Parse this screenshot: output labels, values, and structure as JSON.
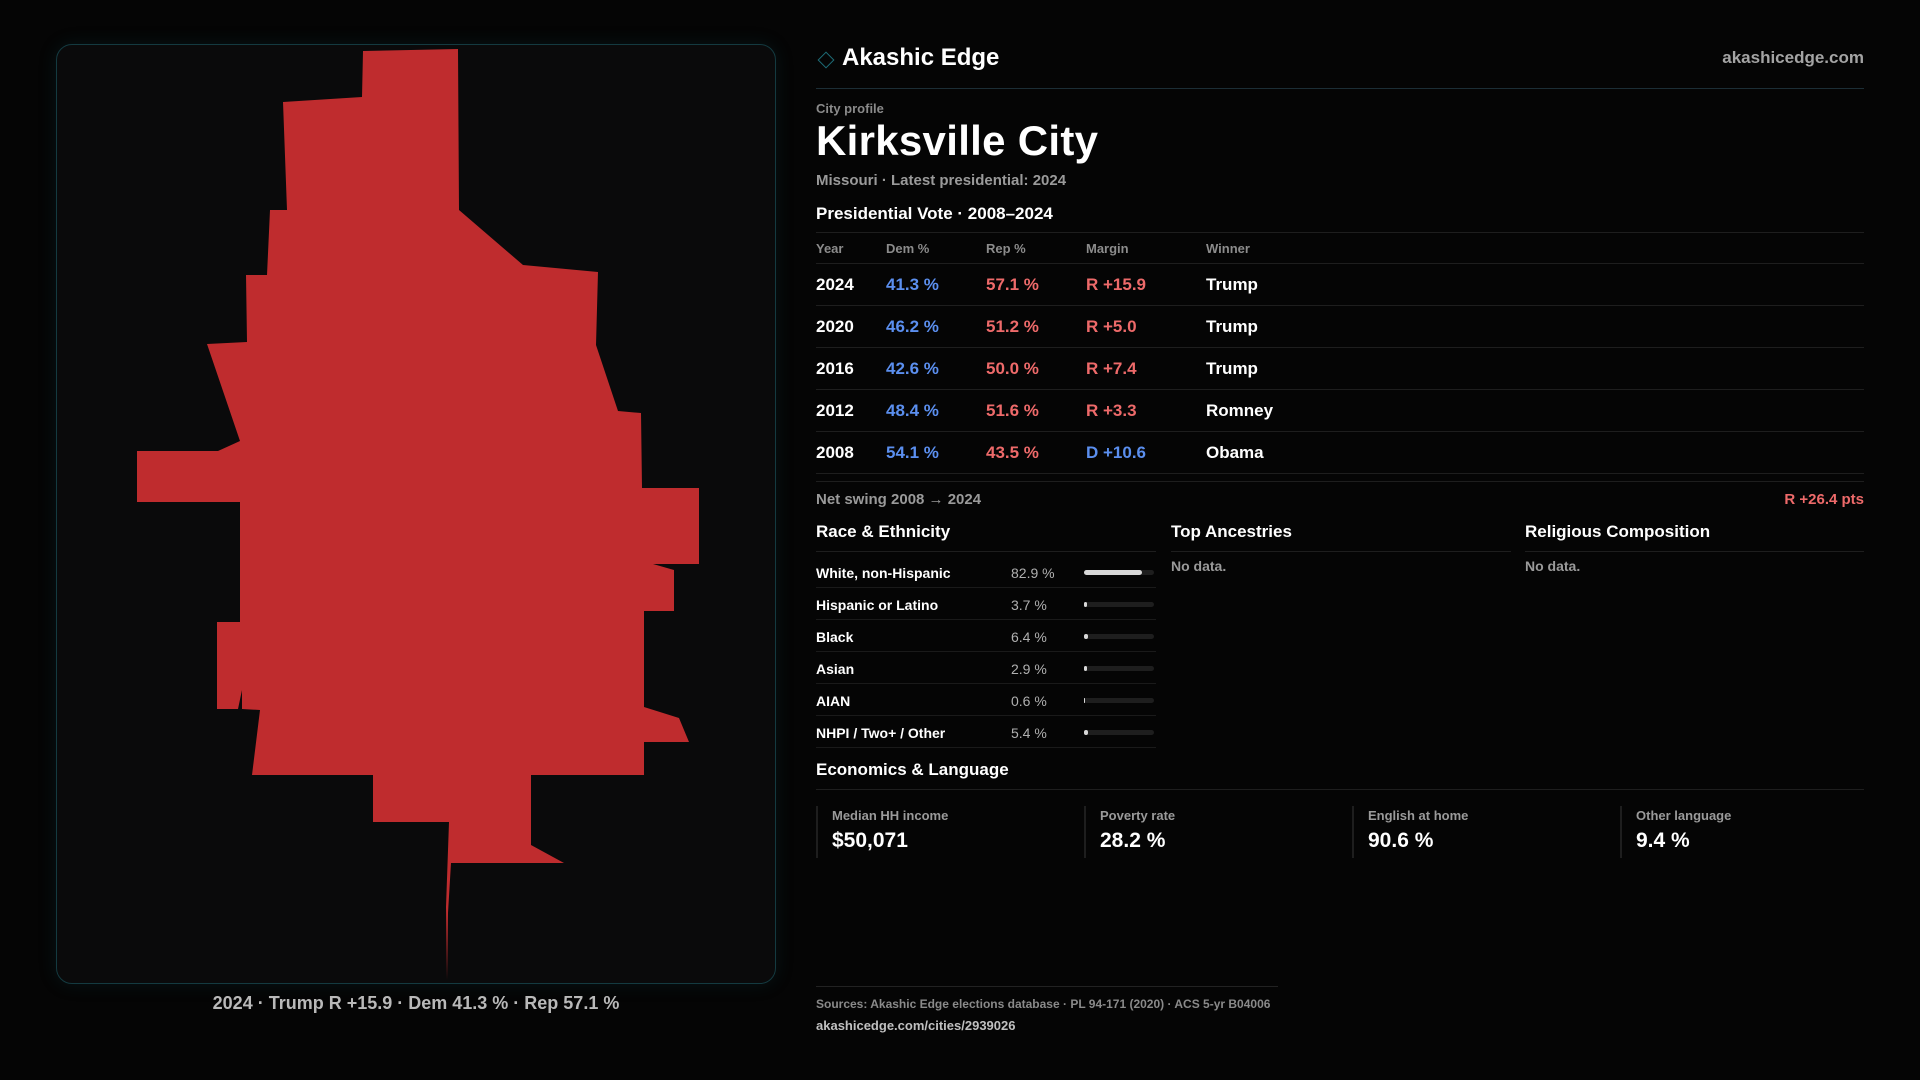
{
  "brand": {
    "name": "Akashic Edge",
    "url": "akashicedge.com"
  },
  "profile": {
    "eyebrow": "City profile",
    "title": "Kirksville City",
    "subtitle": "Missouri · Latest presidential: 2024"
  },
  "colors": {
    "dem": "#5b8fef",
    "rep": "#ee6a6a",
    "map_fill": "#bf2c2e",
    "panel_border": "#143a40"
  },
  "map": {
    "caption": "2024 · Trump R +15.9 · Dem 41.3 % · Rep 57.1 %"
  },
  "vote": {
    "title": "Presidential Vote · 2008–2024",
    "headers": {
      "year": "Year",
      "dem": "Dem %",
      "rep": "Rep %",
      "margin": "Margin",
      "winner": "Winner"
    },
    "rows": [
      {
        "year": "2024",
        "dem": "41.3 %",
        "rep": "57.1 %",
        "margin": "R +15.9",
        "party": "R",
        "winner": "Trump"
      },
      {
        "year": "2020",
        "dem": "46.2 %",
        "rep": "51.2 %",
        "margin": "R +5.0",
        "party": "R",
        "winner": "Trump"
      },
      {
        "year": "2016",
        "dem": "42.6 %",
        "rep": "50.0 %",
        "margin": "R +7.4",
        "party": "R",
        "winner": "Trump"
      },
      {
        "year": "2012",
        "dem": "48.4 %",
        "rep": "51.6 %",
        "margin": "R +3.3",
        "party": "R",
        "winner": "Romney"
      },
      {
        "year": "2008",
        "dem": "54.1 %",
        "rep": "43.5 %",
        "margin": "D +10.6",
        "party": "D",
        "winner": "Obama"
      }
    ],
    "swing_label": "Net swing 2008 → 2024",
    "swing_value": "R +26.4 pts"
  },
  "race": {
    "title": "Race & Ethnicity",
    "rows": [
      {
        "label": "White, non-Hispanic",
        "pct": "82.9 %",
        "share": 0.829
      },
      {
        "label": "Hispanic or Latino",
        "pct": "3.7 %",
        "share": 0.037
      },
      {
        "label": "Black",
        "pct": "6.4 %",
        "share": 0.064
      },
      {
        "label": "Asian",
        "pct": "2.9 %",
        "share": 0.029
      },
      {
        "label": "AIAN",
        "pct": "0.6 %",
        "share": 0.006
      },
      {
        "label": "NHPI / Two+ / Other",
        "pct": "5.4 %",
        "share": 0.054
      }
    ]
  },
  "ancestries": {
    "title": "Top Ancestries",
    "empty": "No data."
  },
  "religion": {
    "title": "Religious Composition",
    "empty": "No data."
  },
  "economics": {
    "title": "Economics & Language",
    "stats": [
      {
        "label": "Median HH income",
        "value": "$50,071"
      },
      {
        "label": "Poverty rate",
        "value": "28.2 %"
      },
      {
        "label": "English at home",
        "value": "90.6 %"
      },
      {
        "label": "Other language",
        "value": "9.4 %"
      }
    ]
  },
  "sources": {
    "line": "Sources: Akashic Edge elections database · PL 94-171 (2020) · ACS 5-yr B04006",
    "url": "akashicedge.com/cities/2939026"
  }
}
